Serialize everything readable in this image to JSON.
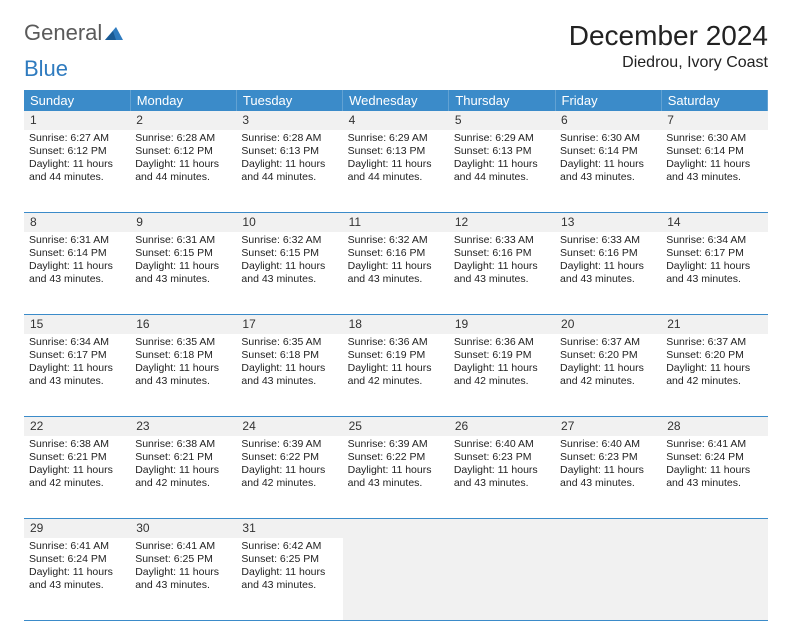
{
  "logo": {
    "part1": "General",
    "part2": "Blue"
  },
  "title": "December 2024",
  "location": "Diedrou, Ivory Coast",
  "colors": {
    "header_bg": "#3b8bc9",
    "header_fg": "#ffffff",
    "daynum_bg": "#f1f1f1",
    "border": "#3b8bc9",
    "logo_gray": "#5a5a5a",
    "logo_blue": "#2f7bbf"
  },
  "weekdays": [
    "Sunday",
    "Monday",
    "Tuesday",
    "Wednesday",
    "Thursday",
    "Friday",
    "Saturday"
  ],
  "weeks": [
    {
      "nums": [
        "1",
        "2",
        "3",
        "4",
        "5",
        "6",
        "7"
      ],
      "cells": [
        {
          "sunrise": "Sunrise: 6:27 AM",
          "sunset": "Sunset: 6:12 PM",
          "day1": "Daylight: 11 hours",
          "day2": "and 44 minutes."
        },
        {
          "sunrise": "Sunrise: 6:28 AM",
          "sunset": "Sunset: 6:12 PM",
          "day1": "Daylight: 11 hours",
          "day2": "and 44 minutes."
        },
        {
          "sunrise": "Sunrise: 6:28 AM",
          "sunset": "Sunset: 6:13 PM",
          "day1": "Daylight: 11 hours",
          "day2": "and 44 minutes."
        },
        {
          "sunrise": "Sunrise: 6:29 AM",
          "sunset": "Sunset: 6:13 PM",
          "day1": "Daylight: 11 hours",
          "day2": "and 44 minutes."
        },
        {
          "sunrise": "Sunrise: 6:29 AM",
          "sunset": "Sunset: 6:13 PM",
          "day1": "Daylight: 11 hours",
          "day2": "and 44 minutes."
        },
        {
          "sunrise": "Sunrise: 6:30 AM",
          "sunset": "Sunset: 6:14 PM",
          "day1": "Daylight: 11 hours",
          "day2": "and 43 minutes."
        },
        {
          "sunrise": "Sunrise: 6:30 AM",
          "sunset": "Sunset: 6:14 PM",
          "day1": "Daylight: 11 hours",
          "day2": "and 43 minutes."
        }
      ]
    },
    {
      "nums": [
        "8",
        "9",
        "10",
        "11",
        "12",
        "13",
        "14"
      ],
      "cells": [
        {
          "sunrise": "Sunrise: 6:31 AM",
          "sunset": "Sunset: 6:14 PM",
          "day1": "Daylight: 11 hours",
          "day2": "and 43 minutes."
        },
        {
          "sunrise": "Sunrise: 6:31 AM",
          "sunset": "Sunset: 6:15 PM",
          "day1": "Daylight: 11 hours",
          "day2": "and 43 minutes."
        },
        {
          "sunrise": "Sunrise: 6:32 AM",
          "sunset": "Sunset: 6:15 PM",
          "day1": "Daylight: 11 hours",
          "day2": "and 43 minutes."
        },
        {
          "sunrise": "Sunrise: 6:32 AM",
          "sunset": "Sunset: 6:16 PM",
          "day1": "Daylight: 11 hours",
          "day2": "and 43 minutes."
        },
        {
          "sunrise": "Sunrise: 6:33 AM",
          "sunset": "Sunset: 6:16 PM",
          "day1": "Daylight: 11 hours",
          "day2": "and 43 minutes."
        },
        {
          "sunrise": "Sunrise: 6:33 AM",
          "sunset": "Sunset: 6:16 PM",
          "day1": "Daylight: 11 hours",
          "day2": "and 43 minutes."
        },
        {
          "sunrise": "Sunrise: 6:34 AM",
          "sunset": "Sunset: 6:17 PM",
          "day1": "Daylight: 11 hours",
          "day2": "and 43 minutes."
        }
      ]
    },
    {
      "nums": [
        "15",
        "16",
        "17",
        "18",
        "19",
        "20",
        "21"
      ],
      "cells": [
        {
          "sunrise": "Sunrise: 6:34 AM",
          "sunset": "Sunset: 6:17 PM",
          "day1": "Daylight: 11 hours",
          "day2": "and 43 minutes."
        },
        {
          "sunrise": "Sunrise: 6:35 AM",
          "sunset": "Sunset: 6:18 PM",
          "day1": "Daylight: 11 hours",
          "day2": "and 43 minutes."
        },
        {
          "sunrise": "Sunrise: 6:35 AM",
          "sunset": "Sunset: 6:18 PM",
          "day1": "Daylight: 11 hours",
          "day2": "and 43 minutes."
        },
        {
          "sunrise": "Sunrise: 6:36 AM",
          "sunset": "Sunset: 6:19 PM",
          "day1": "Daylight: 11 hours",
          "day2": "and 42 minutes."
        },
        {
          "sunrise": "Sunrise: 6:36 AM",
          "sunset": "Sunset: 6:19 PM",
          "day1": "Daylight: 11 hours",
          "day2": "and 42 minutes."
        },
        {
          "sunrise": "Sunrise: 6:37 AM",
          "sunset": "Sunset: 6:20 PM",
          "day1": "Daylight: 11 hours",
          "day2": "and 42 minutes."
        },
        {
          "sunrise": "Sunrise: 6:37 AM",
          "sunset": "Sunset: 6:20 PM",
          "day1": "Daylight: 11 hours",
          "day2": "and 42 minutes."
        }
      ]
    },
    {
      "nums": [
        "22",
        "23",
        "24",
        "25",
        "26",
        "27",
        "28"
      ],
      "cells": [
        {
          "sunrise": "Sunrise: 6:38 AM",
          "sunset": "Sunset: 6:21 PM",
          "day1": "Daylight: 11 hours",
          "day2": "and 42 minutes."
        },
        {
          "sunrise": "Sunrise: 6:38 AM",
          "sunset": "Sunset: 6:21 PM",
          "day1": "Daylight: 11 hours",
          "day2": "and 42 minutes."
        },
        {
          "sunrise": "Sunrise: 6:39 AM",
          "sunset": "Sunset: 6:22 PM",
          "day1": "Daylight: 11 hours",
          "day2": "and 42 minutes."
        },
        {
          "sunrise": "Sunrise: 6:39 AM",
          "sunset": "Sunset: 6:22 PM",
          "day1": "Daylight: 11 hours",
          "day2": "and 43 minutes."
        },
        {
          "sunrise": "Sunrise: 6:40 AM",
          "sunset": "Sunset: 6:23 PM",
          "day1": "Daylight: 11 hours",
          "day2": "and 43 minutes."
        },
        {
          "sunrise": "Sunrise: 6:40 AM",
          "sunset": "Sunset: 6:23 PM",
          "day1": "Daylight: 11 hours",
          "day2": "and 43 minutes."
        },
        {
          "sunrise": "Sunrise: 6:41 AM",
          "sunset": "Sunset: 6:24 PM",
          "day1": "Daylight: 11 hours",
          "day2": "and 43 minutes."
        }
      ]
    },
    {
      "nums": [
        "29",
        "30",
        "31",
        "",
        "",
        "",
        ""
      ],
      "cells": [
        {
          "sunrise": "Sunrise: 6:41 AM",
          "sunset": "Sunset: 6:24 PM",
          "day1": "Daylight: 11 hours",
          "day2": "and 43 minutes."
        },
        {
          "sunrise": "Sunrise: 6:41 AM",
          "sunset": "Sunset: 6:25 PM",
          "day1": "Daylight: 11 hours",
          "day2": "and 43 minutes."
        },
        {
          "sunrise": "Sunrise: 6:42 AM",
          "sunset": "Sunset: 6:25 PM",
          "day1": "Daylight: 11 hours",
          "day2": "and 43 minutes."
        },
        null,
        null,
        null,
        null
      ]
    }
  ]
}
